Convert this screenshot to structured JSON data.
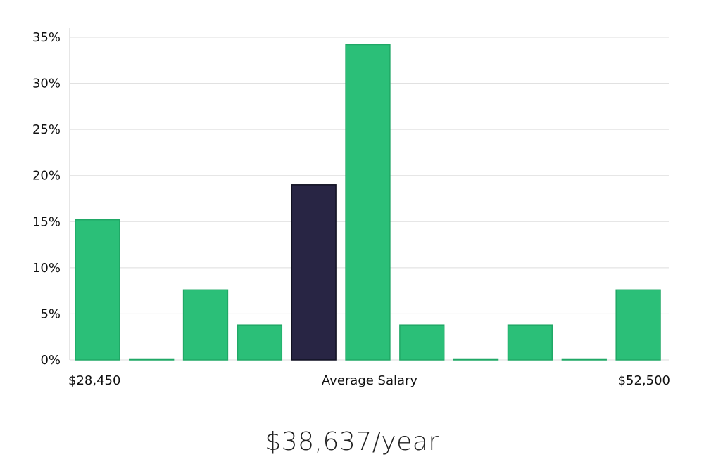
{
  "chart_data": {
    "type": "bar",
    "title": "",
    "xlabel": "",
    "ylabel": "",
    "ylim": [
      0,
      35
    ],
    "yticks": [
      0,
      5,
      10,
      15,
      20,
      25,
      30,
      35
    ],
    "ytick_suffix": "%",
    "grid": true,
    "values": [
      15.2,
      0,
      7.6,
      3.8,
      19.0,
      34.2,
      3.8,
      0,
      3.8,
      0,
      7.6
    ],
    "highlight_index": 4,
    "x_labels": {
      "left": "$28,450",
      "center": "Average Salary",
      "right": "$52,500"
    }
  },
  "colors": {
    "bar": "#2bbf78",
    "bar_highlight": "#282544",
    "grid": "#dddddd",
    "axis": "#cccccc"
  },
  "salary_display": "$38,637/year"
}
